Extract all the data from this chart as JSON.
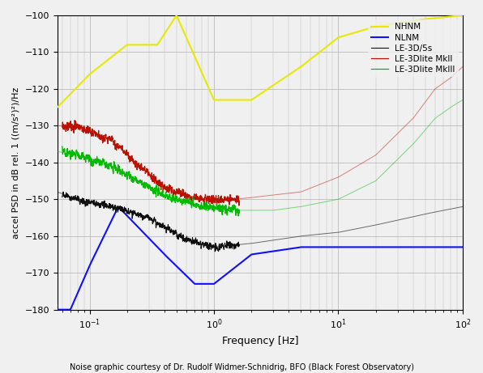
{
  "xlabel": "Frequency [Hz]",
  "ylabel": "accel PSD in dB rel. 1 ((m/s²)²)/Hz",
  "caption": "Noise graphic courtesy of Dr. Rudolf Widmer-Schnidrig, BFO (Black Forest Observatory)",
  "xlim": [
    0.055,
    100
  ],
  "ylim": [
    -180,
    -100
  ],
  "yticks": [
    -180,
    -170,
    -160,
    -150,
    -140,
    -130,
    -120,
    -110,
    -100
  ],
  "bg_color": "#f0f0f0",
  "grid_color": "#bbbbbb",
  "legend_items": [
    "NHNM",
    "NLNM",
    "LE-3D/5s",
    "LE-3Dlite MkII",
    "LE-3Dlite MkIII"
  ],
  "colors": {
    "NHNM": "#e8e800",
    "NLNM": "#1010ff",
    "LE-3D/5s": "#101010",
    "LE-3Dlite MkII": "#bb1100",
    "LE-3Dlite MkIII": "#00bb00"
  },
  "nhnm_knots": [
    [
      0.055,
      -125
    ],
    [
      0.1,
      -116
    ],
    [
      0.2,
      -108
    ],
    [
      0.35,
      -108
    ],
    [
      0.5,
      -100
    ],
    [
      1.0,
      -123
    ],
    [
      2.0,
      -123
    ],
    [
      5.0,
      -114
    ],
    [
      10.0,
      -106
    ],
    [
      20.0,
      -103
    ],
    [
      50.0,
      -101
    ],
    [
      100.0,
      -100
    ]
  ],
  "nlnm_knots": [
    [
      0.055,
      -180
    ],
    [
      0.07,
      -180
    ],
    [
      0.1,
      -168
    ],
    [
      0.17,
      -152
    ],
    [
      0.4,
      -165
    ],
    [
      0.7,
      -173
    ],
    [
      1.0,
      -173
    ],
    [
      2.0,
      -165
    ],
    [
      5.0,
      -163
    ],
    [
      10.0,
      -163
    ],
    [
      20.0,
      -163
    ],
    [
      50.0,
      -163
    ],
    [
      100.0,
      -163
    ]
  ],
  "le3d_knots": [
    [
      0.055,
      -148
    ],
    [
      0.08,
      -150
    ],
    [
      0.15,
      -152
    ],
    [
      0.3,
      -155
    ],
    [
      0.6,
      -161
    ],
    [
      1.0,
      -163
    ],
    [
      2.0,
      -162
    ],
    [
      5.0,
      -160
    ],
    [
      10.0,
      -159
    ],
    [
      20.0,
      -157
    ],
    [
      50.0,
      -154
    ],
    [
      100.0,
      -152
    ]
  ],
  "mkii_knots": [
    [
      0.055,
      -130
    ],
    [
      0.08,
      -130
    ],
    [
      0.15,
      -134
    ],
    [
      0.4,
      -147
    ],
    [
      0.8,
      -150
    ],
    [
      1.5,
      -150
    ],
    [
      5.0,
      -148
    ],
    [
      10.0,
      -144
    ],
    [
      20.0,
      -138
    ],
    [
      40.0,
      -128
    ],
    [
      60.0,
      -120
    ],
    [
      80.0,
      -117
    ],
    [
      100.0,
      -114
    ]
  ],
  "mkiii_knots": [
    [
      0.055,
      -137
    ],
    [
      0.08,
      -138
    ],
    [
      0.15,
      -141
    ],
    [
      0.4,
      -149
    ],
    [
      0.8,
      -152
    ],
    [
      1.5,
      -153
    ],
    [
      3.0,
      -153
    ],
    [
      5.0,
      -152
    ],
    [
      10.0,
      -150
    ],
    [
      20.0,
      -145
    ],
    [
      40.0,
      -135
    ],
    [
      60.0,
      -128
    ],
    [
      80.0,
      -125
    ],
    [
      100.0,
      -123
    ]
  ]
}
